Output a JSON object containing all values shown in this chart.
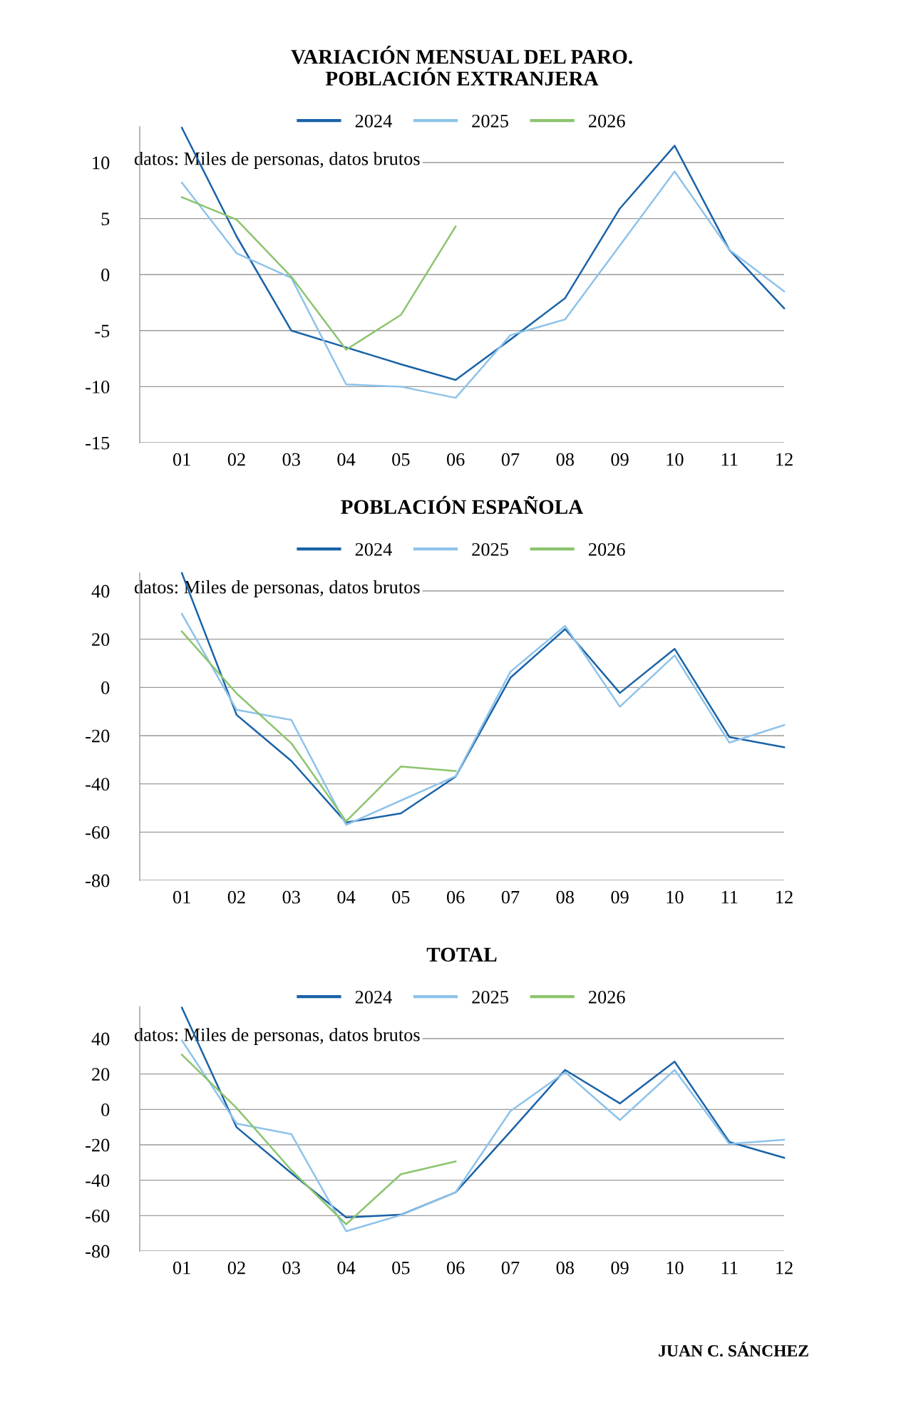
{
  "chart_data": [
    {
      "type": "line",
      "title": "VARIACIÓN MENSUAL DEL PARO.\nPOBLACIÓN EXTRANJERA",
      "categories": [
        "01",
        "02",
        "03",
        "04",
        "05",
        "06",
        "07",
        "08",
        "09",
        "10",
        "11",
        "12"
      ],
      "ylim": [
        -15,
        13.2
      ],
      "yticks": [
        -15,
        -10,
        -5,
        0,
        5,
        10
      ],
      "grid": "y",
      "legend": "top",
      "line_style": "solid",
      "marker": "none",
      "annotations": [
        "datos: Miles de personas, datos brutos"
      ],
      "series": [
        {
          "name": "2024",
          "color": "#1a63a8",
          "values": [
            13.1,
            3.4,
            -5.0,
            -6.5,
            -8.0,
            -9.4,
            -5.8,
            -2.1,
            5.9,
            11.5,
            2.2,
            -3.0
          ]
        },
        {
          "name": "2025",
          "color": "#8ec3ea",
          "values": [
            8.2,
            1.9,
            -0.3,
            -9.8,
            -10.0,
            -11.0,
            -5.4,
            -4.0,
            2.6,
            9.2,
            2.2,
            -1.5
          ]
        },
        {
          "name": "2026",
          "color": "#8cc46e",
          "values": [
            6.9,
            4.9,
            -0.2,
            -6.7,
            -3.6,
            4.3,
            null,
            null,
            null,
            null,
            null,
            null
          ]
        }
      ]
    },
    {
      "type": "line",
      "title": "POBLACIÓN ESPAÑOLA",
      "categories": [
        "01",
        "02",
        "03",
        "04",
        "05",
        "06",
        "07",
        "08",
        "09",
        "10",
        "11",
        "12"
      ],
      "ylim": [
        -80,
        47.5
      ],
      "yticks": [
        -80,
        -60,
        -40,
        -20,
        0,
        20,
        40
      ],
      "grid": "y",
      "legend": "top",
      "line_style": "solid",
      "marker": "none",
      "annotations": [
        "datos: Miles de personas, datos brutos"
      ],
      "series": [
        {
          "name": "2024",
          "color": "#1a63a8",
          "values": [
            47.4,
            -11.4,
            -30.5,
            -56,
            -52.2,
            -37,
            4,
            24.2,
            -2.3,
            16,
            -20.6,
            -24.8
          ]
        },
        {
          "name": "2025",
          "color": "#8ec3ea",
          "values": [
            30.5,
            -9.3,
            -13.5,
            -57,
            -46.9,
            -36.8,
            6.5,
            25.5,
            -8,
            13.3,
            -22.9,
            -15.6
          ]
        },
        {
          "name": "2026",
          "color": "#8cc46e",
          "values": [
            23.2,
            -2.5,
            -23.2,
            -55.5,
            -32.8,
            -34.7,
            null,
            null,
            null,
            null,
            null,
            null
          ]
        }
      ]
    },
    {
      "type": "line",
      "title": "TOTAL",
      "categories": [
        "01",
        "02",
        "03",
        "04",
        "05",
        "06",
        "07",
        "08",
        "09",
        "10",
        "11",
        "12"
      ],
      "ylim": [
        -80,
        58
      ],
      "yticks": [
        -80,
        -60,
        -40,
        -20,
        0,
        20,
        40
      ],
      "grid": "y",
      "legend": "top",
      "line_style": "solid",
      "marker": "none",
      "annotations": [
        "datos: Miles de personas, datos brutos",
        "JUAN C. SÁNCHEZ"
      ],
      "series": [
        {
          "name": "2024",
          "color": "#1a63a8",
          "values": [
            57.5,
            -10.1,
            -36,
            -61,
            -59.5,
            -46.8,
            -12.5,
            22.3,
            3.4,
            27,
            -18.4,
            -27.3
          ]
        },
        {
          "name": "2025",
          "color": "#8ec3ea",
          "values": [
            39,
            -8,
            -14,
            -68.8,
            -59.7,
            -46.8,
            -1,
            21,
            -6,
            22.3,
            -19.5,
            -17.1
          ]
        },
        {
          "name": "2026",
          "color": "#8cc46e",
          "values": [
            30.9,
            0.8,
            -34.3,
            -64.9,
            -36.6,
            -29.4,
            null,
            null,
            null,
            null,
            null,
            null
          ]
        }
      ]
    }
  ]
}
